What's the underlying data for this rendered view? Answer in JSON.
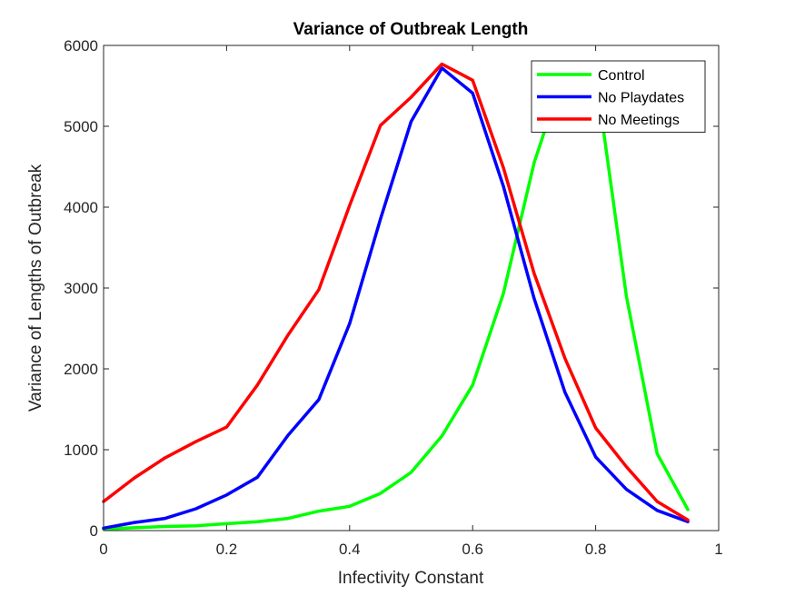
{
  "chart_data": {
    "type": "line",
    "title": "Variance of Outbreak Length",
    "xlabel": "Infectivity Constant",
    "ylabel": "Variance of Lengths of Outbreak",
    "xlim": [
      0,
      1
    ],
    "ylim": [
      0,
      6000
    ],
    "xticks": [
      "0",
      "0.2",
      "0.4",
      "0.6",
      "0.8",
      "1"
    ],
    "yticks": [
      "0",
      "1000",
      "2000",
      "3000",
      "4000",
      "5000",
      "6000"
    ],
    "grid": false,
    "legend_position": "top-right",
    "x": [
      0,
      0.05,
      0.1,
      0.15,
      0.2,
      0.25,
      0.3,
      0.35,
      0.4,
      0.45,
      0.5,
      0.55,
      0.6,
      0.65,
      0.7,
      0.75,
      0.8,
      0.85,
      0.9,
      0.95
    ],
    "series": [
      {
        "name": "Control",
        "color": "#00ff00",
        "values": [
          20,
          35,
          50,
          60,
          85,
          110,
          150,
          240,
          300,
          460,
          720,
          1170,
          1800,
          2930,
          4550,
          5700,
          5650,
          2900,
          950,
          260
        ]
      },
      {
        "name": "No Playdates",
        "color": "#0000ff",
        "values": [
          30,
          100,
          150,
          270,
          440,
          660,
          1180,
          1620,
          2560,
          3850,
          5060,
          5720,
          5410,
          4260,
          2870,
          1710,
          910,
          510,
          250,
          110
        ]
      },
      {
        "name": "No Meetings",
        "color": "#ff0000",
        "values": [
          360,
          650,
          900,
          1100,
          1280,
          1800,
          2420,
          2980,
          4020,
          5010,
          5360,
          5770,
          5570,
          4490,
          3180,
          2130,
          1270,
          790,
          360,
          130
        ]
      }
    ]
  }
}
